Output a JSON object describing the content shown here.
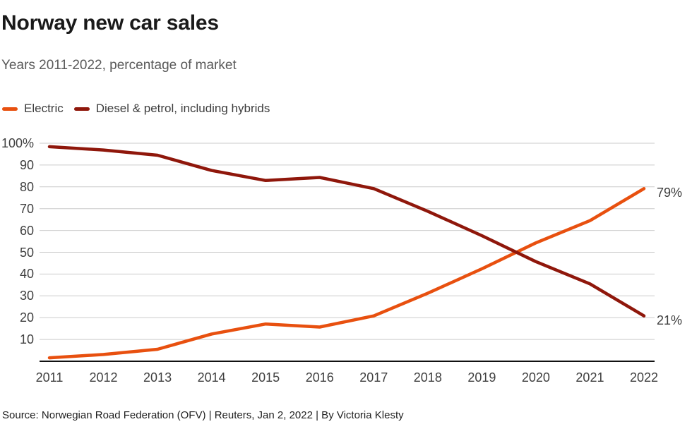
{
  "header": {
    "title": "Norway new car sales",
    "subtitle": "Years 2011-2022, percentage of market"
  },
  "legend": {
    "items": [
      {
        "label": "Electric",
        "color": "#E8500F"
      },
      {
        "label": "Diesel & petrol, including hybrids",
        "color": "#8F170B"
      }
    ]
  },
  "chart_data": {
    "type": "line",
    "title": "Norway new car sales",
    "subtitle": "Years 2011-2022, percentage of market",
    "x": [
      2011,
      2012,
      2013,
      2014,
      2015,
      2016,
      2017,
      2018,
      2019,
      2020,
      2021,
      2022
    ],
    "series": [
      {
        "name": "Electric",
        "color": "#E8500F",
        "values": [
          1.6,
          3.1,
          5.5,
          12.5,
          17.1,
          15.7,
          20.8,
          31.2,
          42.4,
          54.3,
          64.5,
          79.2
        ],
        "end_label": "79%"
      },
      {
        "name": "Diesel & petrol, including hybrids",
        "color": "#8F170B",
        "values": [
          98.4,
          96.9,
          94.5,
          87.5,
          82.9,
          84.3,
          79.2,
          68.8,
          57.6,
          45.7,
          35.5,
          20.8
        ],
        "end_label": "21%"
      }
    ],
    "ylim": [
      0,
      100
    ],
    "yticks": {
      "values": [
        100,
        90,
        80,
        70,
        60,
        50,
        40,
        30,
        20,
        10
      ],
      "labels": [
        "100%",
        "90",
        "80",
        "70",
        "60",
        "50",
        "40",
        "30",
        "20",
        "10"
      ]
    },
    "grid": true,
    "grid_color": "#cbcbcb",
    "axis_color": "#111111",
    "legend_position": "top-left"
  },
  "footer": {
    "source": "Source: Norwegian Road Federation (OFV) | Reuters, Jan 2, 2022 | By Victoria Klesty"
  }
}
